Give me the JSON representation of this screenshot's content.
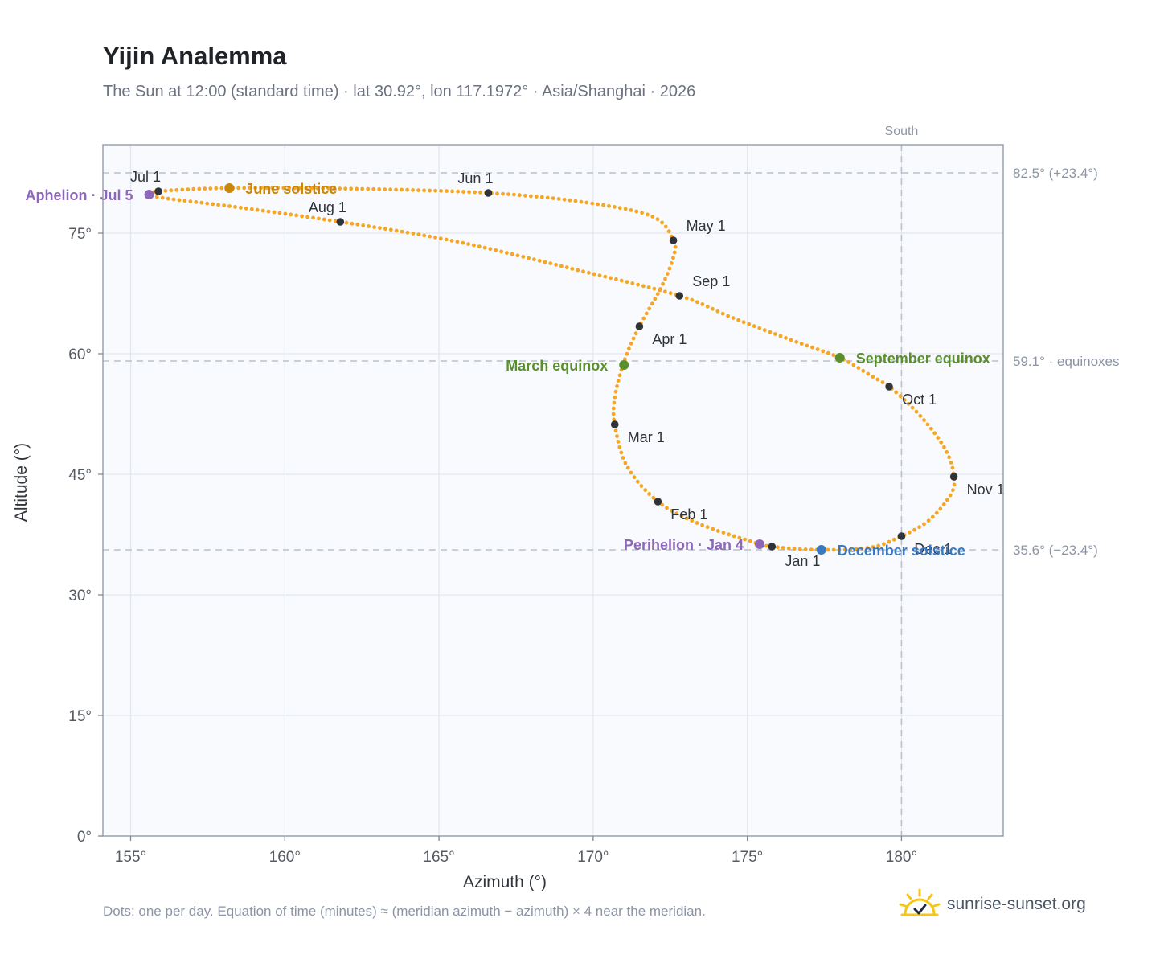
{
  "title": "Yijin Analemma",
  "subtitle": "The Sun at 12:00 (standard time) · lat 30.92°, lon 117.1972° · Asia/Shanghai · 2026",
  "footnote": "Dots: one per day. Equation of time (minutes) ≈ (meridian azimuth − azimuth) × 4 near the meridian.",
  "brand": {
    "name": "sunrise-sunset.org",
    "icon": "sun-check-icon"
  },
  "colors": {
    "curve": "#f5a623",
    "month_marker": "#2f343b",
    "june_solstice": "#c8860a",
    "december_solstice": "#3a78c0",
    "equinox": "#5a8f2e",
    "apsis": "#8e68b8",
    "plot_bg": "#f8fafd",
    "grid": "#e3e8ee",
    "frame": "#9aa3b1",
    "ref_line": "#b7c2cf",
    "axis_text": "#555b63"
  },
  "chart_data": {
    "type": "scatter",
    "xlabel": "Azimuth (°)",
    "ylabel": "Altitude (°)",
    "xlim": [
      154.1,
      183.3
    ],
    "ylim": [
      0,
      86
    ],
    "x_ticks": [
      155,
      160,
      165,
      170,
      175,
      180
    ],
    "x_tick_labels": [
      "155°",
      "160°",
      "165°",
      "170°",
      "175°",
      "180°"
    ],
    "y_ticks": [
      0,
      15,
      30,
      45,
      60,
      75
    ],
    "y_tick_labels": [
      "0°",
      "15°",
      "30°",
      "45°",
      "60°",
      "75°"
    ],
    "grid": true,
    "reference_lines": [
      {
        "orientation": "vertical",
        "value": 180,
        "label": "South"
      },
      {
        "orientation": "horizontal",
        "value": 82.5,
        "label": "82.5° (+23.4°)"
      },
      {
        "orientation": "horizontal",
        "value": 59.1,
        "label": "59.1° · equinoxes"
      },
      {
        "orientation": "horizontal",
        "value": 35.6,
        "label": "35.6° (−23.4°)"
      }
    ],
    "curve_knots": [
      [
        175.8,
        36.0
      ],
      [
        177.4,
        35.6
      ],
      [
        179.0,
        35.9
      ],
      [
        180.0,
        37.3
      ],
      [
        180.9,
        39.3
      ],
      [
        181.6,
        42.5
      ],
      [
        181.7,
        44.7
      ],
      [
        181.5,
        47.5
      ],
      [
        181.0,
        50.5
      ],
      [
        180.3,
        53.5
      ],
      [
        179.6,
        55.9
      ],
      [
        179.0,
        57.3
      ],
      [
        178.0,
        59.5
      ],
      [
        176.5,
        61.6
      ],
      [
        174.5,
        64.5
      ],
      [
        172.8,
        67.2
      ],
      [
        169.5,
        70.4
      ],
      [
        165.5,
        74.0
      ],
      [
        161.8,
        76.4
      ],
      [
        158.5,
        78.2
      ],
      [
        156.2,
        79.3
      ],
      [
        155.6,
        79.8
      ],
      [
        155.9,
        80.2
      ],
      [
        158.2,
        80.6
      ],
      [
        162.5,
        80.5
      ],
      [
        166.6,
        80.0
      ],
      [
        169.6,
        78.9
      ],
      [
        171.9,
        77.1
      ],
      [
        172.6,
        74.1
      ],
      [
        172.6,
        72.0
      ],
      [
        172.2,
        68.2
      ],
      [
        171.5,
        63.4
      ],
      [
        171.0,
        59.0
      ],
      [
        170.7,
        54.5
      ],
      [
        170.7,
        51.2
      ],
      [
        171.1,
        46.0
      ],
      [
        172.1,
        41.6
      ],
      [
        173.4,
        38.9
      ],
      [
        175.0,
        36.8
      ],
      [
        175.8,
        36.0
      ]
    ],
    "month_markers": [
      {
        "label": "Jan 1",
        "x": 175.8,
        "y": 36.0,
        "pos": "below"
      },
      {
        "label": "Feb 1",
        "x": 172.1,
        "y": 41.6,
        "pos": "right-below"
      },
      {
        "label": "Mar 1",
        "x": 170.7,
        "y": 51.2,
        "pos": "right-below"
      },
      {
        "label": "Apr 1",
        "x": 171.5,
        "y": 63.4,
        "pos": "right-below"
      },
      {
        "label": "May 1",
        "x": 172.6,
        "y": 74.1,
        "pos": "right-above"
      },
      {
        "label": "Jun 1",
        "x": 166.6,
        "y": 80.0,
        "pos": "above-left"
      },
      {
        "label": "Jul 1",
        "x": 155.9,
        "y": 80.2,
        "pos": "above-left"
      },
      {
        "label": "Aug 1",
        "x": 161.8,
        "y": 76.4,
        "pos": "above-left"
      },
      {
        "label": "Sep 1",
        "x": 172.8,
        "y": 67.2,
        "pos": "right-above"
      },
      {
        "label": "Oct 1",
        "x": 179.6,
        "y": 55.9,
        "pos": "right-below"
      },
      {
        "label": "Nov 1",
        "x": 181.7,
        "y": 44.7,
        "pos": "right-below"
      },
      {
        "label": "Dec 1",
        "x": 180.0,
        "y": 37.3,
        "pos": "right-below"
      }
    ],
    "events": [
      {
        "label": "June solstice",
        "x": 158.2,
        "y": 80.6,
        "color_key": "june_solstice",
        "pos": "right"
      },
      {
        "label": "December solstice",
        "x": 177.4,
        "y": 35.6,
        "color_key": "december_solstice",
        "pos": "right"
      },
      {
        "label": "March equinox",
        "x": 171.0,
        "y": 58.6,
        "color_key": "equinox",
        "pos": "left"
      },
      {
        "label": "September equinox",
        "x": 178.0,
        "y": 59.5,
        "color_key": "equinox",
        "pos": "right"
      },
      {
        "label": "Aphelion · Jul 5",
        "x": 155.6,
        "y": 79.8,
        "color_key": "apsis",
        "pos": "left"
      },
      {
        "label": "Perihelion · Jan 4",
        "x": 175.4,
        "y": 36.3,
        "color_key": "apsis",
        "pos": "left"
      }
    ]
  }
}
